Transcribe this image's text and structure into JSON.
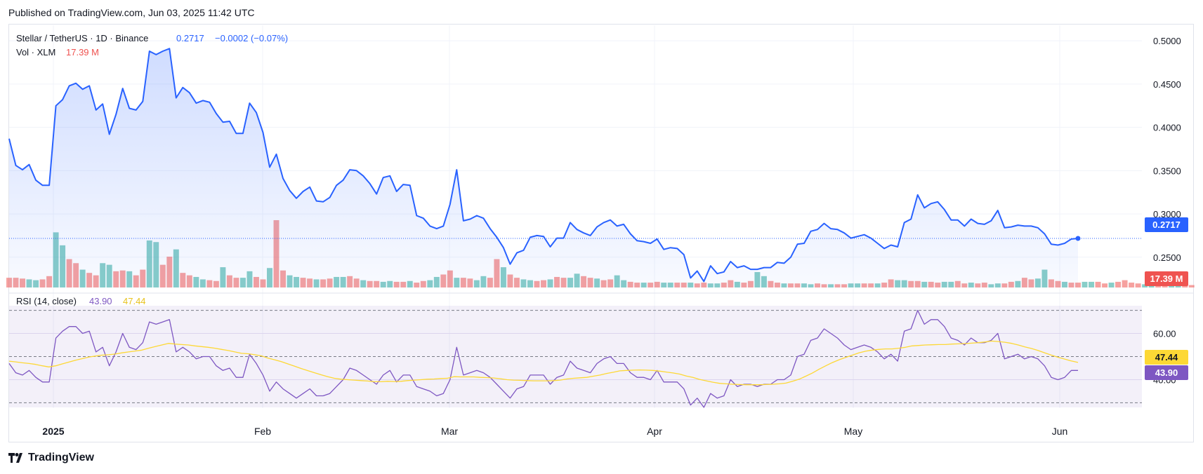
{
  "published": "Published on TradingView.com, Jun 03, 2025 11:42 UTC",
  "brand": "TradingView",
  "legend": {
    "symbol": "Stellar / TetherUS · 1D · Binance",
    "price": "0.2717",
    "change": "−0.0002 (−0.07%)",
    "vol_label": "Vol · XLM",
    "vol_value": "17.39 M",
    "rsi_label": "RSI (14, close)",
    "rsi_value": "43.90",
    "rsi_ma_value": "47.44"
  },
  "badges": {
    "price": "0.2717",
    "volume": "17.39 M",
    "rsi_ma": "47.44",
    "rsi": "43.90"
  },
  "colors": {
    "line": "#2962ff",
    "up": "#26a69a",
    "down": "#ef5350",
    "rsi": "#7e57c2",
    "rsi_ma": "#fdd835"
  },
  "chart_data": [
    {
      "type": "area",
      "title": "Stellar / TetherUS · 1D · Binance",
      "x_labels": [
        "2025",
        "Feb",
        "Mar",
        "Apr",
        "May",
        "Jun"
      ],
      "y_ticks": [
        "0.5000",
        "0.4500",
        "0.4000",
        "0.3500",
        "0.3000",
        "0.2500"
      ],
      "ylim": [
        0.215,
        0.505
      ],
      "last_value": 0.2717,
      "values": [
        0.387,
        0.356,
        0.351,
        0.357,
        0.339,
        0.333,
        0.333,
        0.425,
        0.432,
        0.448,
        0.451,
        0.444,
        0.448,
        0.42,
        0.427,
        0.392,
        0.415,
        0.445,
        0.422,
        0.42,
        0.43,
        0.488,
        0.484,
        0.488,
        0.491,
        0.434,
        0.446,
        0.44,
        0.428,
        0.431,
        0.429,
        0.416,
        0.406,
        0.407,
        0.393,
        0.393,
        0.428,
        0.417,
        0.394,
        0.354,
        0.369,
        0.341,
        0.327,
        0.318,
        0.326,
        0.331,
        0.315,
        0.314,
        0.319,
        0.333,
        0.339,
        0.351,
        0.35,
        0.344,
        0.335,
        0.323,
        0.342,
        0.344,
        0.326,
        0.334,
        0.333,
        0.298,
        0.295,
        0.286,
        0.283,
        0.286,
        0.311,
        0.351,
        0.292,
        0.294,
        0.298,
        0.295,
        0.283,
        0.273,
        0.261,
        0.242,
        0.255,
        0.258,
        0.273,
        0.275,
        0.274,
        0.262,
        0.272,
        0.272,
        0.29,
        0.282,
        0.278,
        0.275,
        0.285,
        0.29,
        0.293,
        0.286,
        0.288,
        0.277,
        0.269,
        0.268,
        0.266,
        0.271,
        0.259,
        0.261,
        0.26,
        0.253,
        0.226,
        0.234,
        0.222,
        0.24,
        0.231,
        0.233,
        0.245,
        0.238,
        0.24,
        0.236,
        0.236,
        0.238,
        0.238,
        0.244,
        0.243,
        0.25,
        0.265,
        0.266,
        0.28,
        0.282,
        0.289,
        0.283,
        0.282,
        0.278,
        0.272,
        0.274,
        0.276,
        0.272,
        0.266,
        0.26,
        0.264,
        0.262,
        0.29,
        0.294,
        0.322,
        0.307,
        0.312,
        0.314,
        0.305,
        0.293,
        0.293,
        0.286,
        0.294,
        0.289,
        0.288,
        0.292,
        0.304,
        0.284,
        0.285,
        0.287,
        0.286,
        0.286,
        0.284,
        0.277,
        0.265,
        0.264,
        0.266,
        0.271,
        0.2717
      ]
    },
    {
      "type": "bar",
      "title": "Vol · XLM",
      "last_value": 17.39,
      "values": [
        12,
        12,
        11,
        10,
        9,
        10,
        14,
        68,
        52,
        35,
        30,
        22,
        18,
        15,
        30,
        28,
        20,
        21,
        20,
        15,
        22,
        58,
        56,
        28,
        38,
        47,
        18,
        15,
        13,
        10,
        9,
        8,
        25,
        15,
        12,
        12,
        20,
        13,
        10,
        24,
        83,
        21,
        15,
        13,
        12,
        11,
        10,
        10,
        11,
        13,
        13,
        14,
        11,
        9,
        8,
        8,
        7,
        8,
        7,
        7,
        8,
        6,
        8,
        9,
        13,
        16,
        21,
        12,
        12,
        11,
        9,
        14,
        12,
        35,
        25,
        16,
        12,
        10,
        9,
        8,
        9,
        10,
        13,
        12,
        12,
        17,
        14,
        12,
        11,
        9,
        10,
        15,
        9,
        7,
        6,
        6,
        6,
        7,
        6,
        6,
        6,
        6,
        6,
        5,
        6,
        5,
        5,
        6,
        9,
        7,
        6,
        8,
        19,
        14,
        8,
        6,
        5,
        5,
        5,
        5,
        4,
        5,
        4,
        4,
        4,
        4,
        5,
        5,
        5,
        5,
        5,
        6,
        10,
        9,
        9,
        8,
        8,
        7,
        7,
        6,
        7,
        7,
        8,
        5,
        6,
        5,
        6,
        4,
        5,
        5,
        7,
        8,
        12,
        10,
        11,
        22,
        10,
        8,
        7,
        6,
        6,
        7,
        7,
        7,
        5,
        6,
        7,
        9,
        6,
        5,
        4,
        5,
        4,
        5,
        3,
        3,
        3,
        3
      ],
      "directions": "ddduudduuddudduuddudduuddudduuddudduuddudduuddudduuddudduuddudduuddudduuddudduuddudduuddudduuddudduuddudduuddudduuddudduuddudduuddudduuddudduuddudduuddudduuddudduuddud"
    },
    {
      "type": "line",
      "title": "RSI (14, close)",
      "y_ticks": [
        "60.00",
        "40.00"
      ],
      "bands": [
        70,
        50,
        30
      ],
      "ylim": [
        28,
        72
      ],
      "series": [
        {
          "name": "RSI (14, close)",
          "last_value": 43.9,
          "values": [
            47,
            43,
            42,
            44,
            41,
            39,
            39,
            58,
            61,
            63,
            63,
            60,
            61,
            52,
            54,
            46,
            52,
            60,
            54,
            53,
            56,
            65,
            64,
            65,
            66,
            52,
            54,
            52,
            49,
            50,
            50,
            46,
            44,
            45,
            41,
            41,
            51,
            47,
            42,
            35,
            39,
            36,
            34,
            32,
            34,
            36,
            33,
            33,
            34,
            37,
            40,
            45,
            44,
            42,
            40,
            38,
            42,
            44,
            39,
            42,
            42,
            37,
            36,
            35,
            33,
            34,
            40,
            54,
            42,
            43,
            44,
            43,
            41,
            38,
            35,
            32,
            36,
            37,
            42,
            42,
            42,
            38,
            41,
            42,
            48,
            45,
            44,
            43,
            47,
            49,
            50,
            47,
            47,
            43,
            41,
            41,
            40,
            44,
            39,
            39,
            39,
            36,
            29,
            32,
            28,
            34,
            32,
            33,
            40,
            37,
            38,
            38,
            37,
            38,
            38,
            40,
            40,
            42,
            50,
            51,
            57,
            58,
            62,
            60,
            58,
            55,
            53,
            54,
            55,
            54,
            52,
            49,
            51,
            48,
            61,
            62,
            70,
            64,
            66,
            66,
            63,
            58,
            57,
            55,
            58,
            56,
            56,
            57,
            60,
            49,
            50,
            51,
            49,
            50,
            49,
            46,
            41,
            40,
            41,
            44,
            44
          ]
        },
        {
          "name": "MA",
          "last_value": 47.44,
          "values": [
            48.0,
            47.7,
            47.3,
            47.0,
            46.6,
            46.0,
            45.5,
            46.0,
            46.8,
            47.6,
            48.4,
            49.1,
            49.8,
            50.2,
            50.6,
            50.8,
            51.1,
            51.6,
            52.0,
            52.4,
            52.8,
            53.6,
            54.3,
            55.0,
            55.7,
            55.4,
            55.2,
            55.0,
            54.6,
            54.3,
            54.0,
            53.6,
            53.1,
            52.6,
            52.0,
            51.4,
            51.2,
            50.8,
            50.3,
            49.3,
            48.6,
            47.8,
            46.8,
            45.8,
            44.8,
            43.9,
            43.0,
            42.1,
            41.3,
            40.6,
            40.2,
            40.0,
            39.8,
            39.6,
            39.4,
            39.1,
            39.1,
            39.3,
            39.2,
            39.3,
            39.6,
            39.8,
            40.0,
            40.2,
            40.3,
            40.5,
            40.6,
            41.3,
            41.2,
            41.2,
            41.2,
            41.0,
            40.9,
            40.7,
            40.4,
            40.0,
            39.8,
            39.7,
            39.6,
            39.5,
            39.5,
            39.5,
            39.6,
            39.8,
            40.3,
            40.6,
            40.8,
            41.0,
            41.5,
            42.0,
            42.7,
            43.2,
            43.8,
            44.0,
            44.1,
            44.2,
            44.1,
            44.0,
            43.7,
            43.3,
            42.9,
            42.4,
            41.6,
            41.0,
            40.1,
            39.5,
            38.9,
            38.4,
            38.2,
            38.0,
            37.9,
            37.8,
            37.8,
            37.8,
            37.9,
            38.0,
            38.2,
            38.5,
            39.3,
            40.2,
            41.5,
            42.9,
            44.5,
            46.0,
            47.4,
            48.6,
            49.6,
            50.6,
            51.6,
            52.3,
            52.8,
            53.1,
            53.3,
            53.3,
            53.6,
            54.0,
            54.6,
            54.8,
            55.0,
            55.1,
            55.2,
            55.2,
            55.4,
            55.5,
            55.6,
            55.8,
            56.0,
            56.3,
            56.7,
            56.5,
            56.2,
            55.7,
            55.0,
            54.2,
            53.5,
            52.6,
            51.6,
            50.6,
            49.7,
            48.9,
            48.1,
            47.44
          ]
        }
      ]
    }
  ]
}
